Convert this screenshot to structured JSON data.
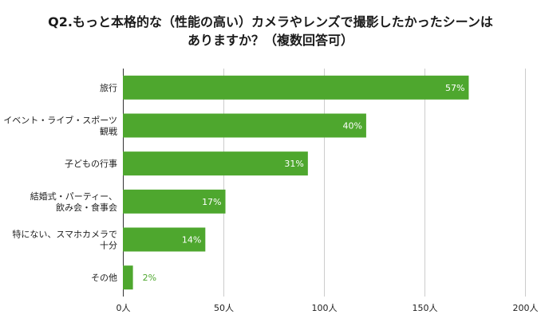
{
  "chart_data": {
    "type": "bar",
    "orientation": "horizontal",
    "title": [
      "Q2.もっと本格的な（性能の高い）カメラやレンズで撮影したかったシーンは",
      "ありますか？（複数回答可）"
    ],
    "categories": [
      [
        "旅行"
      ],
      [
        "イベント・ライブ・スポーツ",
        "観戦"
      ],
      [
        "子どもの行事"
      ],
      [
        "結婚式・パーティー、",
        "飲み会・食事会"
      ],
      [
        "特にない、スマホカメラで",
        "十分"
      ],
      [
        "その他"
      ]
    ],
    "values": [
      172,
      121,
      92,
      51,
      41,
      5
    ],
    "data_labels": [
      "57%",
      "40%",
      "31%",
      "17%",
      "14%",
      "2%"
    ],
    "xlim": [
      0,
      200
    ],
    "x_ticks": [
      0,
      50,
      100,
      150,
      200
    ],
    "x_tick_labels": [
      "0人",
      "50人",
      "100人",
      "150人",
      "200人"
    ],
    "grid": true,
    "legend": "none",
    "colors": {
      "bar": "#4ea72e",
      "grid": "#cccccc",
      "label_outside": "#4ea72e"
    }
  }
}
